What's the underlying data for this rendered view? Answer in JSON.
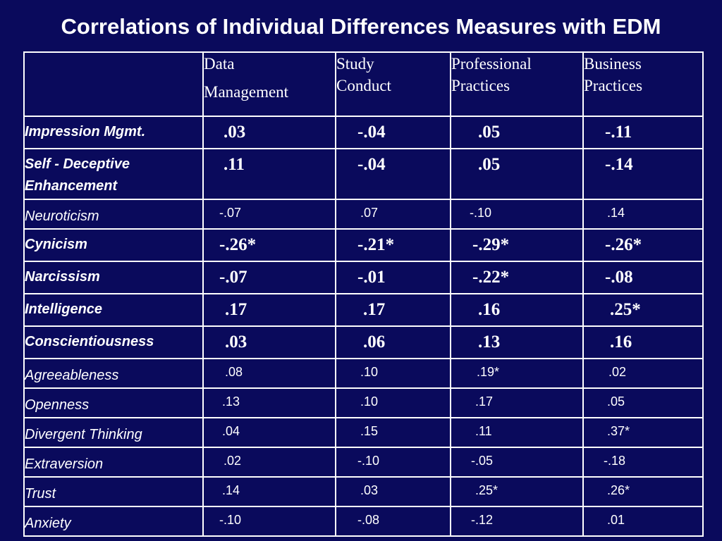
{
  "title": "Correlations of Individual Differences Measures with EDM",
  "columns": [
    "Data Management",
    "Study Conduct",
    "Professional Practices",
    "Business Practices"
  ],
  "column_lines": [
    [
      "Data",
      "Management"
    ],
    [
      "Study",
      "Conduct"
    ],
    [
      "Professional",
      "Practices"
    ],
    [
      "Business",
      "Practices"
    ]
  ],
  "rows": [
    {
      "label_lines": [
        "Impression Mgmt."
      ],
      "values": [
        ".03",
        "-.04",
        ".05",
        "-.11"
      ],
      "emphasis": true
    },
    {
      "label_lines": [
        "Self - Deceptive",
        "Enhancement"
      ],
      "values": [
        ".11",
        "-.04",
        ".05",
        "-.14"
      ],
      "emphasis": true
    },
    {
      "label_lines": [
        "Neuroticism"
      ],
      "values": [
        "-.07",
        ".07",
        "-.10",
        ".14"
      ],
      "emphasis": false
    },
    {
      "label_lines": [
        "Cynicism"
      ],
      "values": [
        "-.26*",
        "-.21*",
        "-.29*",
        "-.26*"
      ],
      "emphasis": true
    },
    {
      "label_lines": [
        "Narcissism"
      ],
      "values": [
        "-.07",
        "-.01",
        "-.22*",
        "-.08"
      ],
      "emphasis": true
    },
    {
      "label_lines": [
        "Intelligence"
      ],
      "values": [
        ".17",
        ".17",
        ".16",
        ".25*"
      ],
      "emphasis": true
    },
    {
      "label_lines": [
        "Conscientiousness"
      ],
      "values": [
        ".03",
        ".06",
        ".13",
        ".16"
      ],
      "emphasis": true
    },
    {
      "label_lines": [
        "Agreeableness"
      ],
      "values": [
        ".08",
        ".10",
        ".19*",
        ".02"
      ],
      "emphasis": false
    },
    {
      "label_lines": [
        "Openness"
      ],
      "values": [
        ".13",
        ".10",
        ".17",
        ".05"
      ],
      "emphasis": false
    },
    {
      "label_lines": [
        "Divergent Thinking"
      ],
      "values": [
        ".04",
        ".15",
        ".11",
        ".37*"
      ],
      "emphasis": false
    },
    {
      "label_lines": [
        "Extraversion"
      ],
      "values": [
        ".02",
        "-.10",
        "-.05",
        "-.18"
      ],
      "emphasis": false
    },
    {
      "label_lines": [
        "Trust"
      ],
      "values": [
        ".14",
        ".03",
        ".25*",
        ".26*"
      ],
      "emphasis": false
    },
    {
      "label_lines": [
        "Anxiety"
      ],
      "values": [
        "-.10",
        "-.08",
        "-.12",
        ".01"
      ],
      "emphasis": false
    }
  ],
  "colors": {
    "background": "#0a0a5c",
    "text": "#ffffff",
    "border": "#ffffff"
  }
}
